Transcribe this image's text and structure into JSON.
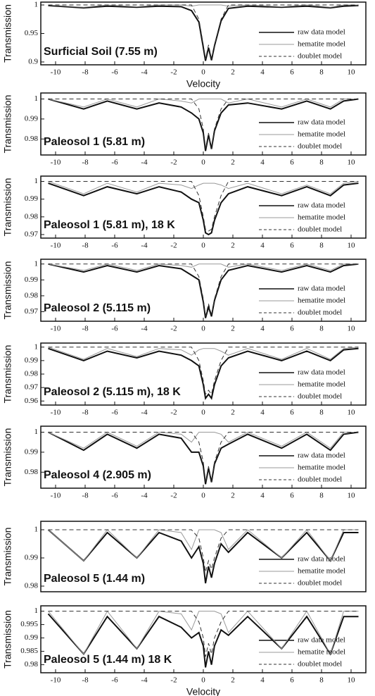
{
  "chart_data": [
    {
      "type": "line",
      "label": "Surficial Soil (7.55 m)",
      "xlabel": "Velocity",
      "ylabel": "Transmission",
      "x": [
        -10.5,
        -8.1,
        -6.5,
        -4.5,
        -3,
        -1.5,
        -0.8,
        -0.3,
        0,
        0.15,
        0.35,
        0.55,
        0.75,
        1.2,
        1.7,
        3,
        5.3,
        7,
        8.6,
        9.5,
        10.5
      ],
      "xlim": [
        -11,
        11
      ],
      "xticks": [
        -10,
        -8,
        -6,
        -4,
        -2,
        0,
        2,
        4,
        6,
        8,
        10
      ],
      "ylim": [
        0.895,
        1.005
      ],
      "yticks": [
        0.9,
        0.95,
        1
      ],
      "series": [
        {
          "name": "raw data model",
          "color": "#111111",
          "values": [
            0.999,
            0.995,
            0.998,
            0.996,
            0.998,
            0.997,
            0.99,
            0.97,
            0.925,
            0.902,
            0.925,
            0.903,
            0.928,
            0.972,
            0.994,
            0.998,
            0.996,
            0.998,
            0.995,
            0.998,
            0.999
          ]
        },
        {
          "name": "hematite model",
          "color": "#999999",
          "values": [
            1,
            0.996,
            1,
            0.997,
            1,
            1,
            0.998,
            1,
            1,
            1,
            1,
            1,
            1,
            1,
            0.998,
            1,
            0.997,
            1,
            0.996,
            1,
            1
          ]
        },
        {
          "name": "doublet model",
          "color": "#333333",
          "linestyle": "dashed",
          "values": [
            1,
            1,
            1,
            1,
            1,
            1,
            1,
            0.975,
            0.93,
            0.905,
            0.93,
            0.905,
            0.93,
            0.975,
            1,
            1,
            1,
            1,
            1,
            1,
            1
          ]
        }
      ]
    },
    {
      "type": "line",
      "label": "Paleosol 1 (5.81 m)",
      "ylabel": "Transmission",
      "x": [
        -10.5,
        -8.1,
        -6.5,
        -4.5,
        -3,
        -1.5,
        -0.8,
        -0.3,
        0,
        0.15,
        0.35,
        0.55,
        0.75,
        1.2,
        1.7,
        3,
        5.3,
        7,
        8.6,
        9.5,
        10.5
      ],
      "xlim": [
        -11,
        11
      ],
      "xticks": [
        -10,
        -8,
        -6,
        -4,
        -2,
        0,
        2,
        4,
        6,
        8,
        10
      ],
      "ylim": [
        0.972,
        1.003
      ],
      "yticks": [
        0.98,
        0.99,
        1
      ],
      "series": [
        {
          "name": "raw data model",
          "color": "#111111",
          "values": [
            1,
            0.995,
            0.999,
            0.995,
            0.998,
            0.996,
            0.993,
            0.99,
            0.983,
            0.974,
            0.982,
            0.975,
            0.984,
            0.993,
            0.997,
            0.998,
            0.995,
            0.999,
            0.995,
            0.999,
            1
          ]
        },
        {
          "name": "hematite model",
          "color": "#999999",
          "values": [
            1,
            0.996,
            1,
            0.996,
            1,
            0.999,
            0.998,
            1,
            1,
            1,
            1,
            1,
            1,
            1,
            0.998,
            1,
            0.996,
            1,
            0.996,
            1,
            1
          ]
        },
        {
          "name": "doublet model",
          "color": "#333333",
          "linestyle": "dashed",
          "values": [
            1,
            1,
            1,
            1,
            1,
            1,
            1,
            0.995,
            0.985,
            0.975,
            0.983,
            0.975,
            0.985,
            0.995,
            1,
            1,
            1,
            1,
            1,
            1,
            1
          ]
        }
      ]
    },
    {
      "type": "line",
      "label": "Paleosol 1 (5.81 m), 18 K",
      "ylabel": "Transmission",
      "x": [
        -10.5,
        -8.1,
        -6.5,
        -4.5,
        -3,
        -1.5,
        -0.8,
        -0.3,
        0,
        0.15,
        0.35,
        0.55,
        0.75,
        1.2,
        1.7,
        3,
        5.3,
        7,
        8.6,
        9.5,
        10.5
      ],
      "xlim": [
        -11,
        11
      ],
      "xticks": [
        -10,
        -8,
        -6,
        -4,
        -2,
        0,
        2,
        4,
        6,
        8,
        10
      ],
      "ylim": [
        0.968,
        1.003
      ],
      "yticks": [
        0.97,
        0.98,
        0.99,
        1
      ],
      "series": [
        {
          "name": "raw data model",
          "color": "#111111",
          "values": [
            0.999,
            0.992,
            0.997,
            0.993,
            0.997,
            0.994,
            0.99,
            0.988,
            0.978,
            0.971,
            0.97,
            0.971,
            0.978,
            0.988,
            0.993,
            0.997,
            0.992,
            0.997,
            0.992,
            0.998,
            0.999
          ]
        },
        {
          "name": "hematite model",
          "color": "#999999",
          "values": [
            1,
            0.993,
            0.999,
            0.994,
            0.999,
            0.998,
            0.996,
            0.998,
            0.999,
            0.999,
            0.999,
            0.999,
            0.999,
            0.998,
            0.996,
            0.999,
            0.993,
            0.998,
            0.993,
            0.999,
            1
          ]
        },
        {
          "name": "doublet model",
          "color": "#333333",
          "linestyle": "dashed",
          "values": [
            1,
            1,
            1,
            1,
            1,
            1,
            1,
            0.992,
            0.98,
            0.973,
            0.972,
            0.973,
            0.98,
            0.992,
            1,
            1,
            1,
            1,
            1,
            1,
            1
          ]
        }
      ]
    },
    {
      "type": "line",
      "label": "Paleosol 2 (5.115 m)",
      "ylabel": "Transmission",
      "x": [
        -10.5,
        -8.1,
        -6.5,
        -4.5,
        -3,
        -1.5,
        -0.8,
        -0.3,
        0,
        0.15,
        0.35,
        0.55,
        0.75,
        1.2,
        1.7,
        3,
        5.3,
        7,
        8.6,
        9.5,
        10.5
      ],
      "xlim": [
        -11,
        11
      ],
      "xticks": [
        -10,
        -8,
        -6,
        -4,
        -2,
        0,
        2,
        4,
        6,
        8,
        10
      ],
      "ylim": [
        0.964,
        1.003
      ],
      "yticks": [
        0.97,
        0.98,
        0.99,
        1
      ],
      "series": [
        {
          "name": "raw data model",
          "color": "#111111",
          "values": [
            1,
            0.995,
            0.999,
            0.995,
            0.999,
            0.997,
            0.993,
            0.99,
            0.976,
            0.966,
            0.973,
            0.967,
            0.977,
            0.99,
            0.996,
            0.999,
            0.995,
            0.999,
            0.995,
            0.999,
            1
          ]
        },
        {
          "name": "hematite model",
          "color": "#999999",
          "values": [
            1,
            0.996,
            1,
            0.996,
            1,
            0.999,
            0.998,
            1,
            1,
            1,
            1,
            1,
            1,
            1,
            0.998,
            1,
            0.996,
            1,
            0.996,
            1,
            1
          ]
        },
        {
          "name": "doublet model",
          "color": "#333333",
          "linestyle": "dashed",
          "values": [
            1,
            1,
            1,
            1,
            1,
            1,
            1,
            0.992,
            0.978,
            0.967,
            0.975,
            0.968,
            0.978,
            0.992,
            1,
            1,
            1,
            1,
            1,
            1,
            1
          ]
        }
      ]
    },
    {
      "type": "line",
      "label": "Paleosol 2 (5.115 m), 18 K",
      "ylabel": "Transmission",
      "x": [
        -10.5,
        -8.1,
        -6.5,
        -4.5,
        -3,
        -1.5,
        -0.8,
        -0.3,
        0,
        0.15,
        0.35,
        0.55,
        0.75,
        1.2,
        1.7,
        3,
        5.3,
        7,
        8.6,
        9.5,
        10.5
      ],
      "xlim": [
        -11,
        11
      ],
      "xticks": [
        -10,
        -8,
        -6,
        -4,
        -2,
        0,
        2,
        4,
        6,
        8,
        10
      ],
      "ylim": [
        0.957,
        1.003
      ],
      "yticks": [
        0.96,
        0.97,
        0.98,
        0.99,
        1
      ],
      "series": [
        {
          "name": "raw data model",
          "color": "#111111",
          "values": [
            0.999,
            0.99,
            0.997,
            0.992,
            0.997,
            0.994,
            0.99,
            0.986,
            0.972,
            0.962,
            0.965,
            0.962,
            0.972,
            0.986,
            0.992,
            0.997,
            0.99,
            0.997,
            0.99,
            0.998,
            0.999
          ]
        },
        {
          "name": "hematite model",
          "color": "#999999",
          "values": [
            1,
            0.991,
            0.999,
            0.993,
            0.999,
            0.998,
            0.994,
            0.998,
            0.999,
            0.999,
            0.999,
            0.999,
            0.999,
            0.997,
            0.994,
            0.999,
            0.991,
            0.999,
            0.991,
            0.999,
            1
          ]
        },
        {
          "name": "doublet model",
          "color": "#333333",
          "linestyle": "dashed",
          "values": [
            1,
            1,
            1,
            1,
            1,
            1,
            1,
            0.99,
            0.975,
            0.965,
            0.968,
            0.965,
            0.975,
            0.99,
            1,
            1,
            1,
            1,
            1,
            1,
            1
          ]
        }
      ]
    },
    {
      "type": "line",
      "label": "Paleosol 4 (2.905 m)",
      "ylabel": "Transmission",
      "x": [
        -10.5,
        -8.1,
        -6.5,
        -4.5,
        -3,
        -1.5,
        -0.8,
        -0.3,
        0,
        0.15,
        0.35,
        0.55,
        0.75,
        1.2,
        1.7,
        3,
        5.3,
        7,
        8.6,
        9.5,
        10.5
      ],
      "xlim": [
        -11,
        11
      ],
      "xticks": [
        -10,
        -8,
        -6,
        -4,
        -2,
        0,
        2,
        4,
        6,
        8,
        10
      ],
      "ylim": [
        0.972,
        1.003
      ],
      "yticks": [
        0.98,
        0.99,
        1
      ],
      "series": [
        {
          "name": "raw data model",
          "color": "#111111",
          "values": [
            1,
            0.991,
            0.999,
            0.992,
            0.999,
            0.997,
            0.99,
            0.99,
            0.983,
            0.974,
            0.982,
            0.975,
            0.984,
            0.992,
            0.994,
            0.999,
            0.992,
            0.999,
            0.991,
            0.999,
            1
          ]
        },
        {
          "name": "hematite model",
          "color": "#999999",
          "values": [
            1,
            0.992,
            1,
            0.993,
            1,
            0.999,
            0.995,
            1,
            1,
            1,
            1,
            1,
            1,
            0.999,
            0.995,
            1,
            0.993,
            1,
            0.992,
            1,
            1
          ]
        },
        {
          "name": "doublet model",
          "color": "#333333",
          "linestyle": "dashed",
          "values": [
            1,
            1,
            1,
            1,
            1,
            1,
            1,
            0.995,
            0.985,
            0.975,
            0.983,
            0.975,
            0.985,
            0.995,
            1,
            1,
            1,
            1,
            1,
            1,
            1
          ]
        }
      ]
    },
    {
      "type": "line",
      "label": "Paleosol 5 (1.44 m)",
      "ylabel": "Transmission",
      "x": [
        -10.5,
        -8.1,
        -6.5,
        -4.5,
        -3,
        -1.5,
        -0.8,
        -0.3,
        0,
        0.15,
        0.35,
        0.55,
        0.75,
        1.2,
        1.7,
        3,
        5.3,
        7,
        8.6,
        9.5,
        10.5
      ],
      "xlim": [
        -11,
        11
      ],
      "ylim": [
        0.978,
        1.003
      ],
      "yticks": [
        0.98,
        0.99,
        1
      ],
      "series": [
        {
          "name": "raw data model",
          "color": "#111111",
          "values": [
            1,
            0.989,
            0.999,
            0.99,
            0.999,
            0.996,
            0.99,
            0.994,
            0.988,
            0.981,
            0.987,
            0.983,
            0.988,
            0.995,
            0.992,
            0.999,
            0.99,
            0.999,
            0.989,
            0.999,
            0.999
          ]
        },
        {
          "name": "hematite model",
          "color": "#999999",
          "values": [
            1,
            0.989,
            1,
            0.99,
            1,
            0.999,
            0.993,
            1,
            1,
            1,
            1,
            1,
            1,
            0.999,
            0.993,
            1,
            0.99,
            1,
            0.989,
            1,
            1
          ]
        },
        {
          "name": "doublet model",
          "color": "#333333",
          "linestyle": "dashed",
          "values": [
            1,
            1,
            1,
            1,
            1,
            1,
            1,
            0.997,
            0.99,
            0.985,
            0.989,
            0.986,
            0.99,
            0.997,
            1,
            1,
            1,
            1,
            1,
            1,
            1
          ]
        }
      ]
    },
    {
      "type": "line",
      "label": "Paleosol 5 (1.44 m) 18 K",
      "xlabel": "Velocity",
      "ylabel": "Transmission",
      "x": [
        -10.5,
        -8.1,
        -6.5,
        -4.5,
        -3,
        -1.5,
        -0.8,
        -0.3,
        0,
        0.15,
        0.35,
        0.55,
        0.75,
        1.2,
        1.7,
        3,
        5.3,
        7,
        8.6,
        9.5,
        10.5
      ],
      "xlim": [
        -11,
        11
      ],
      "xticks": [
        -10,
        -8,
        -6,
        -4,
        -2,
        0,
        2,
        4,
        6,
        8,
        10
      ],
      "ylim": [
        0.977,
        1.002
      ],
      "yticks": [
        0.98,
        0.985,
        0.99,
        0.995,
        1
      ],
      "series": [
        {
          "name": "raw data model",
          "color": "#111111",
          "values": [
            0.999,
            0.984,
            0.998,
            0.986,
            0.998,
            0.994,
            0.99,
            0.992,
            0.987,
            0.979,
            0.985,
            0.98,
            0.987,
            0.993,
            0.991,
            0.998,
            0.986,
            0.998,
            0.984,
            0.998,
            0.998
          ]
        },
        {
          "name": "hematite model",
          "color": "#999999",
          "values": [
            1,
            0.984,
            1,
            0.986,
            1,
            0.999,
            0.993,
            1,
            1,
            1,
            1,
            1,
            1,
            0.999,
            0.992,
            1,
            0.986,
            1,
            0.984,
            1,
            1
          ]
        },
        {
          "name": "doublet model",
          "color": "#333333",
          "linestyle": "dashed",
          "values": [
            1,
            1,
            1,
            1,
            1,
            1,
            1,
            0.996,
            0.99,
            0.983,
            0.988,
            0.984,
            0.99,
            0.996,
            1,
            1,
            1,
            1,
            1,
            1,
            1
          ]
        }
      ]
    }
  ]
}
